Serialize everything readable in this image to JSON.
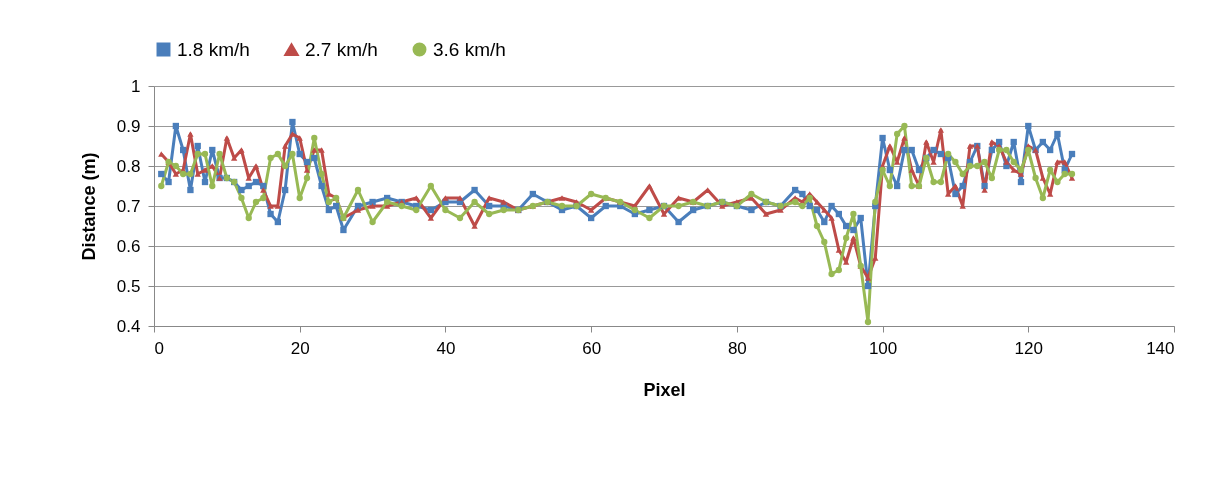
{
  "chart_data": {
    "type": "line",
    "xlabel": "Pixel",
    "ylabel": "Distance (m)",
    "x": [
      1,
      2,
      3,
      4,
      5,
      6,
      7,
      8,
      9,
      10,
      11,
      12,
      13,
      14,
      15,
      16,
      17,
      18,
      19,
      20,
      21,
      22,
      23,
      24,
      25,
      26,
      28,
      30,
      32,
      34,
      36,
      38,
      40,
      42,
      44,
      46,
      48,
      50,
      52,
      54,
      56,
      58,
      60,
      62,
      64,
      66,
      68,
      70,
      72,
      74,
      76,
      78,
      80,
      82,
      84,
      86,
      88,
      89,
      90,
      91,
      92,
      93,
      94,
      95,
      96,
      97,
      98,
      99,
      100,
      101,
      102,
      103,
      104,
      105,
      106,
      107,
      108,
      109,
      110,
      111,
      112,
      113,
      114,
      115,
      116,
      117,
      118,
      119,
      120,
      121,
      122,
      123,
      124,
      125,
      126
    ],
    "series": [
      {
        "name": "1.8 km/h",
        "color": "#4a7ebb",
        "marker": "square",
        "values": [
          0.78,
          0.76,
          0.9,
          0.84,
          0.74,
          0.85,
          0.76,
          0.84,
          0.77,
          0.77,
          0.76,
          0.74,
          0.75,
          0.76,
          0.75,
          0.68,
          0.66,
          0.74,
          0.91,
          0.83,
          0.81,
          0.82,
          0.75,
          0.69,
          0.7,
          0.64,
          0.7,
          0.71,
          0.72,
          0.71,
          0.7,
          0.69,
          0.71,
          0.71,
          0.74,
          0.7,
          0.7,
          0.69,
          0.73,
          0.71,
          0.69,
          0.7,
          0.67,
          0.7,
          0.7,
          0.68,
          0.69,
          0.7,
          0.66,
          0.69,
          0.7,
          0.71,
          0.7,
          0.69,
          0.71,
          0.7,
          0.74,
          0.73,
          0.7,
          0.69,
          0.66,
          0.7,
          0.68,
          0.65,
          0.64,
          0.67,
          0.5,
          0.7,
          0.87,
          0.79,
          0.75,
          0.84,
          0.84,
          0.79,
          0.82,
          0.84,
          0.83,
          0.82,
          0.73,
          0.75,
          0.81,
          0.85,
          0.75,
          0.84,
          0.86,
          0.8,
          0.86,
          0.76,
          0.9,
          0.84,
          0.86,
          0.84,
          0.88,
          0.79,
          0.83
        ]
      },
      {
        "name": "2.7 km/h",
        "color": "#be4b48",
        "marker": "triangle",
        "values": [
          0.83,
          0.81,
          0.78,
          0.79,
          0.88,
          0.78,
          0.79,
          0.8,
          0.77,
          0.87,
          0.82,
          0.84,
          0.77,
          0.8,
          0.74,
          0.7,
          0.7,
          0.85,
          0.88,
          0.87,
          0.79,
          0.84,
          0.84,
          0.73,
          0.72,
          0.67,
          0.69,
          0.7,
          0.7,
          0.71,
          0.72,
          0.67,
          0.72,
          0.72,
          0.65,
          0.72,
          0.71,
          0.69,
          0.7,
          0.71,
          0.72,
          0.71,
          0.69,
          0.72,
          0.71,
          0.7,
          0.75,
          0.68,
          0.72,
          0.71,
          0.74,
          0.7,
          0.71,
          0.72,
          0.68,
          0.69,
          0.72,
          0.71,
          0.73,
          0.71,
          0.69,
          0.67,
          0.59,
          0.56,
          0.62,
          0.55,
          0.52,
          0.57,
          0.8,
          0.85,
          0.81,
          0.87,
          0.79,
          0.75,
          0.86,
          0.81,
          0.89,
          0.73,
          0.75,
          0.7,
          0.85,
          0.85,
          0.74,
          0.86,
          0.85,
          0.81,
          0.79,
          0.78,
          0.85,
          0.84,
          0.77,
          0.73,
          0.81,
          0.81,
          0.77
        ]
      },
      {
        "name": "3.6 km/h",
        "color": "#98b954",
        "marker": "circle",
        "values": [
          0.75,
          0.81,
          0.8,
          0.78,
          0.78,
          0.83,
          0.83,
          0.75,
          0.83,
          0.77,
          0.76,
          0.72,
          0.67,
          0.71,
          0.72,
          0.82,
          0.83,
          0.8,
          0.83,
          0.72,
          0.77,
          0.87,
          0.78,
          0.71,
          0.72,
          0.67,
          0.74,
          0.66,
          0.71,
          0.7,
          0.69,
          0.75,
          0.69,
          0.67,
          0.71,
          0.68,
          0.69,
          0.69,
          0.7,
          0.71,
          0.7,
          0.7,
          0.73,
          0.72,
          0.71,
          0.69,
          0.67,
          0.7,
          0.7,
          0.71,
          0.7,
          0.71,
          0.7,
          0.73,
          0.71,
          0.7,
          0.71,
          0.7,
          0.72,
          0.65,
          0.61,
          0.53,
          0.54,
          0.62,
          0.68,
          0.55,
          0.41,
          0.71,
          0.79,
          0.75,
          0.88,
          0.9,
          0.75,
          0.75,
          0.82,
          0.76,
          0.76,
          0.83,
          0.81,
          0.78,
          0.8,
          0.8,
          0.81,
          0.77,
          0.84,
          0.84,
          0.81,
          0.79,
          0.84,
          0.77,
          0.72,
          0.79,
          0.76,
          0.78,
          0.78
        ]
      }
    ],
    "xlim": [
      0,
      140
    ],
    "xticks": [
      0,
      20,
      40,
      60,
      80,
      100,
      120,
      140
    ],
    "ylim": [
      0.4,
      1
    ],
    "yticks": [
      0.4,
      0.5,
      0.6,
      0.7,
      0.8,
      0.9,
      1
    ],
    "grid": "y",
    "legend": "top"
  }
}
